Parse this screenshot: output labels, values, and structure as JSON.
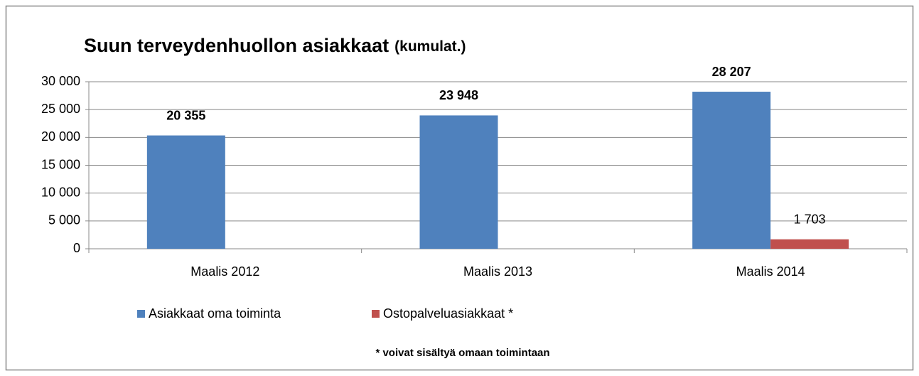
{
  "chart_data": {
    "type": "bar",
    "title": "Suun terveydenhuollon asiakkaat",
    "title_note": "(kumulat.)",
    "annotation": "* voivat  sisältyä omaan toimintaan",
    "categories": [
      "Maalis 2012",
      "Maalis 2013",
      "Maalis 2014"
    ],
    "series": [
      {
        "name": "Asiakkaat oma toiminta",
        "color": "#4f81bd",
        "values": [
          20355,
          23948,
          28207
        ],
        "value_labels": [
          "20 355",
          "23 948",
          "28 207"
        ]
      },
      {
        "name": "Ostopalveluasiakkaat *",
        "color": "#c0504d",
        "values": [
          null,
          null,
          1703
        ],
        "value_labels": [
          null,
          null,
          "1 703"
        ]
      }
    ],
    "ylim": [
      0,
      30000
    ],
    "yticks": [
      0,
      {
        "value": 5000,
        "label": "5 000"
      },
      {
        "value": 10000,
        "label": "10 000"
      },
      {
        "value": 15000,
        "label": "15 000"
      },
      {
        "value": 20000,
        "label": "20 000"
      },
      {
        "value": 25000,
        "label": "25 000"
      },
      {
        "value": 30000,
        "label": "30 000"
      }
    ],
    "grid": true,
    "legend": "bottom"
  }
}
